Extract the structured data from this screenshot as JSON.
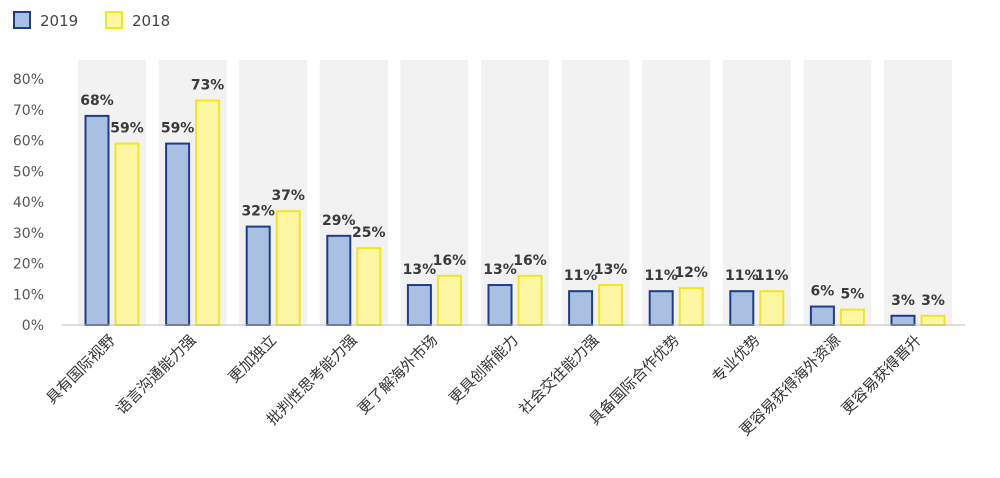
{
  "chart_data": {
    "type": "bar",
    "categories": [
      "具有国际视野",
      "语言沟通能力强",
      "更加独立",
      "批判性思考能力强",
      "更了解海外市场",
      "更具创新能力",
      "社会交往能力强",
      "具备国际合作优势",
      "专业优势",
      "更容易获得海外资源",
      "更容易获得晋升"
    ],
    "series": [
      {
        "name": "2019",
        "values": [
          68,
          59,
          32,
          29,
          13,
          13,
          11,
          11,
          11,
          6,
          3
        ],
        "labels": [
          "68%",
          "59%",
          "32%",
          "29%",
          "13%",
          "13%",
          "11%",
          "11%",
          "11%",
          "6%",
          "3%"
        ],
        "color": "#a9c0e3",
        "stroke": "#1f3c8a"
      },
      {
        "name": "2018",
        "values": [
          59,
          73,
          37,
          25,
          16,
          16,
          13,
          12,
          11,
          5,
          3
        ],
        "labels": [
          "59%",
          "73%",
          "37%",
          "25%",
          "16%",
          "16%",
          "13%",
          "12%",
          "11%",
          "5%",
          "3%"
        ],
        "color": "#fdf7a3",
        "stroke": "#f1e620"
      }
    ],
    "yticks": [
      "0%",
      "10%",
      "20%",
      "30%",
      "40%",
      "50%",
      "60%",
      "70%",
      "80%"
    ],
    "ylim": [
      0,
      80
    ],
    "grid": false,
    "background_band_color": "#f2f2f2",
    "legend_position": "top-left",
    "title": "",
    "xlabel": "",
    "ylabel": ""
  }
}
